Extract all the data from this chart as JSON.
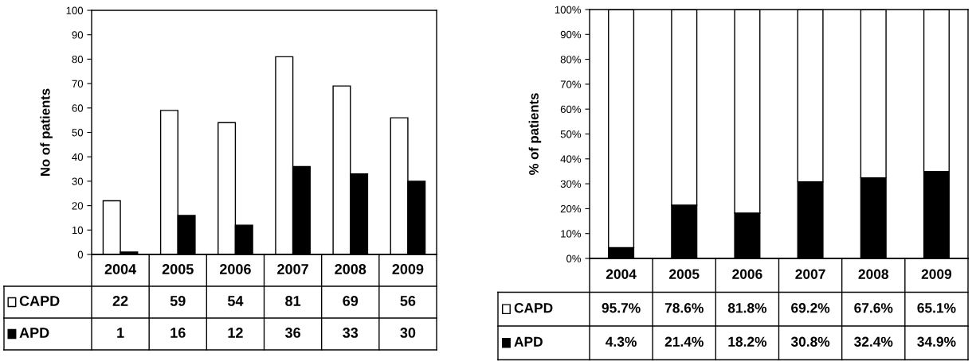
{
  "chart_data": [
    {
      "type": "bar",
      "ylabel": "No of patients",
      "categories": [
        "2004",
        "2005",
        "2006",
        "2007",
        "2008",
        "2009"
      ],
      "series": [
        {
          "name": "CAPD",
          "color": "#ffffff",
          "values": [
            22,
            59,
            54,
            81,
            69,
            56
          ]
        },
        {
          "name": "APD",
          "color": "#000000",
          "values": [
            1,
            16,
            12,
            36,
            33,
            30
          ]
        }
      ],
      "ylim": [
        0,
        100
      ],
      "yticks": [
        0,
        10,
        20,
        30,
        40,
        50,
        60,
        70,
        80,
        90,
        100
      ],
      "data_labels": true,
      "grid": false,
      "legend": "bottom left"
    },
    {
      "type": "bar",
      "stacked": true,
      "ylabel": "% of patients",
      "categories": [
        "2004",
        "2005",
        "2006",
        "2007",
        "2008",
        "2009"
      ],
      "series": [
        {
          "name": "APD",
          "color": "#000000",
          "values": [
            4.3,
            21.4,
            18.2,
            30.8,
            32.4,
            34.9
          ],
          "value_labels": [
            "4.3%",
            "21.4%",
            "18.2%",
            "30.8%",
            "32.4%",
            "34.9%"
          ]
        },
        {
          "name": "CAPD",
          "color": "#ffffff",
          "values": [
            95.7,
            78.6,
            81.8,
            69.2,
            67.6,
            65.1
          ],
          "value_labels": [
            "95.7%",
            "78.6%",
            "81.8%",
            "69.2%",
            "67.6%",
            "65.1%"
          ]
        }
      ],
      "ylim": [
        0,
        100
      ],
      "yticks": [
        {
          "value": 0,
          "label": "0%"
        },
        {
          "value": 10,
          "label": "10%"
        },
        {
          "value": 20,
          "label": "20%"
        },
        {
          "value": 30,
          "label": "30%"
        },
        {
          "value": 40,
          "label": "40%"
        },
        {
          "value": 50,
          "label": "50%"
        },
        {
          "value": 60,
          "label": "60%"
        },
        {
          "value": 70,
          "label": "70%"
        },
        {
          "value": 80,
          "label": "80%"
        },
        {
          "value": 90,
          "label": "90%"
        },
        {
          "value": 100,
          "label": "100%"
        }
      ],
      "grid": false,
      "legend": "bottom left"
    }
  ]
}
